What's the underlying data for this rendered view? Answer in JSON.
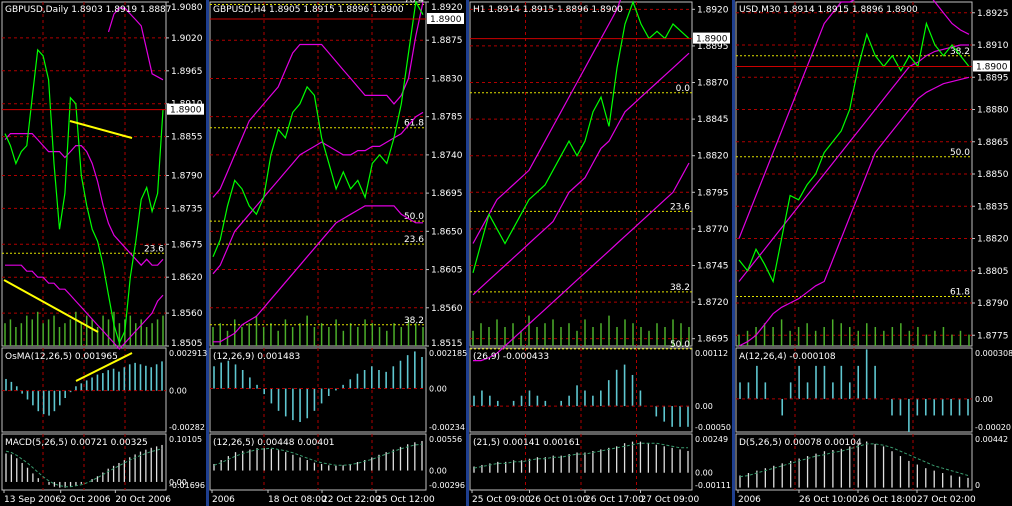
{
  "colors": {
    "background": "#000000",
    "grid": "#b00000",
    "frame": "#c0c0c0",
    "separator": "#1f3f8f",
    "price_line": "#00ff00",
    "envelope": "#e000e0",
    "volume": "#4caf2a",
    "histogram": "#5fc7d0",
    "macd_hist": "#e0e0e0",
    "macd_signal": "#3a9b6e",
    "trendline": "#ffff00",
    "fibo": "#e0e000",
    "current_price": "#cc0000",
    "text": "#ffffff"
  },
  "chart_data": [
    {
      "type": "line",
      "header": "GBPUSD,Daily  1.8903 1.8919 1.8887",
      "current_price_label": "1.8900",
      "price_axis": [
        "1.9080",
        "1.9020",
        "1.8965",
        "1.8910",
        "1.8855",
        "1.8790",
        "1.8735",
        "1.8675",
        "1.8620",
        "1.8560",
        "1.8505"
      ],
      "ylim": [
        1.8505,
        1.908
      ],
      "fibo_labels": [
        {
          "text": "23.6",
          "price": 1.866
        }
      ],
      "time_axis": [
        "13 Sep 2006",
        "2 Oct 2006",
        "20 Oct 2006"
      ],
      "price": [
        1.886,
        1.884,
        1.881,
        1.883,
        1.884,
        1.892,
        1.9,
        1.899,
        1.895,
        1.881,
        1.87,
        1.876,
        1.892,
        1.891,
        1.879,
        1.874,
        1.87,
        1.868,
        1.864,
        1.859,
        1.854,
        1.851,
        1.853,
        1.862,
        1.868,
        1.875,
        1.877,
        1.873,
        1.876,
        1.89
      ],
      "upper_band": [
        null,
        null,
        null,
        null,
        null,
        null,
        null,
        null,
        null,
        null,
        null,
        null,
        null,
        null,
        null,
        null,
        null,
        null,
        null,
        1.903,
        1.906,
        1.907,
        1.907,
        1.906,
        1.905,
        1.904,
        1.9,
        1.896,
        1.8955,
        1.895
      ],
      "middle_band": [
        1.885,
        1.886,
        1.886,
        1.886,
        1.886,
        1.886,
        1.885,
        1.884,
        1.883,
        1.883,
        1.883,
        1.882,
        1.883,
        1.884,
        1.884,
        1.883,
        1.881,
        1.878,
        1.874,
        1.871,
        1.869,
        1.868,
        1.867,
        1.866,
        1.865,
        1.864,
        1.865,
        1.864,
        1.864,
        1.865
      ],
      "lower_band": [
        1.864,
        1.864,
        1.864,
        1.864,
        1.863,
        1.863,
        1.862,
        1.862,
        1.861,
        1.861,
        1.86,
        1.86,
        1.859,
        1.858,
        1.857,
        1.856,
        1.855,
        1.854,
        1.853,
        1.852,
        1.851,
        1.85,
        1.851,
        1.852,
        1.853,
        1.854,
        1.855,
        1.856,
        1.858,
        1.859
      ],
      "volume": [
        0.6,
        0.7,
        0.5,
        0.6,
        0.8,
        0.7,
        0.9,
        0.6,
        0.7,
        0.8,
        0.5,
        0.6,
        0.7,
        0.9,
        0.6,
        0.8,
        0.7,
        0.5,
        0.8,
        0.7,
        0.9,
        0.6,
        0.7,
        0.8,
        0.6,
        0.7,
        0.5,
        0.6,
        0.7,
        0.8
      ],
      "osma_label": "OsMA(12,26,5)  0.001965",
      "osma_axis": [
        "0.002913",
        "0.00",
        "-0.00282"
      ],
      "osma_range": [
        -0.00282,
        0.002913
      ],
      "osma": [
        0.0008,
        0.0006,
        0.0003,
        -0.0002,
        -0.0006,
        -0.001,
        -0.0014,
        -0.0016,
        -0.0017,
        -0.0014,
        -0.001,
        -0.0005,
        -0.0001,
        0.0003,
        0.0005,
        0.0007,
        0.0009,
        0.0011,
        0.0012,
        0.0014,
        0.0015,
        0.0013,
        0.0016,
        0.0018,
        0.0019,
        0.0018,
        0.0017,
        0.0016,
        0.0018,
        0.002
      ],
      "macd_label": "MACD(5,26,5)  0.00721 0.00325",
      "macd_axis": [
        "0.10105",
        "0.00",
        "-0.01696"
      ],
      "macd_range": [
        -0.01696,
        0.10105
      ],
      "macd": [
        0.06,
        0.058,
        0.05,
        0.04,
        0.03,
        0.018,
        0.008,
        0.0,
        -0.006,
        -0.01,
        -0.012,
        -0.012,
        -0.01,
        -0.008,
        -0.004,
        0.0,
        0.006,
        0.012,
        0.02,
        0.028,
        0.034,
        0.04,
        0.046,
        0.052,
        0.058,
        0.064,
        0.068,
        0.072,
        0.075,
        0.078
      ],
      "macd_signal": [
        0.065,
        0.062,
        0.056,
        0.048,
        0.04,
        0.03,
        0.02,
        0.01,
        0.002,
        -0.004,
        -0.008,
        -0.01,
        -0.01,
        -0.008,
        -0.006,
        -0.002,
        0.003,
        0.009,
        0.015,
        0.022,
        0.028,
        0.034,
        0.04,
        0.046,
        0.051,
        0.056,
        0.06,
        0.064,
        0.067,
        0.07
      ]
    },
    {
      "type": "line",
      "header": "GBPUSD,H4  1.8905 1.8915 1.8896 1.8900",
      "current_price_label": "1.8900",
      "price_axis": [
        "1.8920",
        "1.8875",
        "1.8830",
        "1.8785",
        "1.8740",
        "1.8695",
        "1.8650",
        "1.8605",
        "1.8560",
        "1.8515"
      ],
      "ylim": [
        1.8515,
        1.892
      ],
      "fibo_labels": [
        {
          "text": "76.4",
          "price": 1.8917
        },
        {
          "text": "61.8",
          "price": 1.8772
        },
        {
          "text": "50.0",
          "price": 1.8662
        },
        {
          "text": "23.6",
          "price": 1.8635
        },
        {
          "text": "38.2",
          "price": 1.854
        }
      ],
      "time_axis": [
        "2006",
        "18 Oct 08:00",
        "22 Oct 22:00",
        "25 Oct 12:00"
      ],
      "price": [
        1.862,
        1.864,
        1.868,
        1.871,
        1.87,
        1.868,
        1.867,
        1.869,
        1.874,
        1.877,
        1.876,
        1.879,
        1.88,
        1.882,
        1.881,
        1.876,
        1.873,
        1.87,
        1.872,
        1.87,
        1.871,
        1.869,
        1.873,
        1.874,
        1.873,
        1.876,
        1.88,
        1.886,
        1.892,
        1.8905
      ],
      "upper_band": [
        1.869,
        1.87,
        1.872,
        1.874,
        1.876,
        1.878,
        1.879,
        1.88,
        1.881,
        1.882,
        1.884,
        1.886,
        1.887,
        1.887,
        1.887,
        1.887,
        1.886,
        1.885,
        1.884,
        1.883,
        1.882,
        1.881,
        1.881,
        1.881,
        1.881,
        1.88,
        1.881,
        1.883,
        1.888,
        1.892
      ],
      "middle_band": [
        1.86,
        1.861,
        1.863,
        1.865,
        1.866,
        1.867,
        1.868,
        1.869,
        1.87,
        1.871,
        1.872,
        1.873,
        1.874,
        1.8745,
        1.875,
        1.8755,
        1.875,
        1.8745,
        1.874,
        1.874,
        1.8745,
        1.8745,
        1.875,
        1.875,
        1.8755,
        1.876,
        1.8765,
        1.8775,
        1.8785,
        1.879
      ],
      "lower_band": [
        1.852,
        1.852,
        1.8525,
        1.853,
        1.854,
        1.8545,
        1.855,
        1.856,
        1.857,
        1.858,
        1.859,
        1.86,
        1.861,
        1.862,
        1.863,
        1.864,
        1.865,
        1.866,
        1.8665,
        1.867,
        1.8675,
        1.868,
        1.868,
        1.868,
        1.868,
        1.868,
        1.867,
        1.8665,
        1.866,
        1.866
      ],
      "volume": [
        0.5,
        0.6,
        0.4,
        0.7,
        0.5,
        0.6,
        0.8,
        0.5,
        0.6,
        0.4,
        0.7,
        0.5,
        0.6,
        0.8,
        0.5,
        0.6,
        0.5,
        0.7,
        0.4,
        0.6,
        0.5,
        0.7,
        0.6,
        0.5,
        0.4,
        0.6,
        0.5,
        0.7,
        0.6,
        0.5
      ],
      "osma_label": "(12,26,9)  0.001483",
      "osma_axis": [
        "0.002185",
        "0.00",
        "-0.00234"
      ],
      "osma_range": [
        -0.00234,
        0.002185
      ],
      "osma": [
        0.0012,
        0.0014,
        0.0015,
        0.0013,
        0.001,
        0.0006,
        0.0002,
        -0.0003,
        -0.0008,
        -0.0012,
        -0.0015,
        -0.0017,
        -0.0018,
        -0.0016,
        -0.0012,
        -0.0008,
        -0.0004,
        -0.0001,
        0.0002,
        0.0005,
        0.0008,
        0.001,
        0.0012,
        0.001,
        0.0009,
        0.0012,
        0.0015,
        0.0018,
        0.002,
        0.0017
      ],
      "macd_label": "(12,26,5)  0.00448 0.00401",
      "macd_axis": [
        "0.00556",
        "0.00",
        "-0.00296"
      ],
      "macd_range": [
        -0.00296,
        0.00556
      ],
      "macd": [
        0.001,
        0.0016,
        0.0022,
        0.0028,
        0.003,
        0.0032,
        0.0034,
        0.0034,
        0.0033,
        0.0031,
        0.0028,
        0.0024,
        0.002,
        0.0016,
        0.0012,
        0.001,
        0.0008,
        0.0007,
        0.0008,
        0.001,
        0.0013,
        0.0016,
        0.002,
        0.0024,
        0.0028,
        0.0032,
        0.0036,
        0.004,
        0.0043,
        0.0045
      ],
      "macd_signal": [
        0.0008,
        0.0012,
        0.0017,
        0.0022,
        0.0026,
        0.0029,
        0.0032,
        0.0033,
        0.0034,
        0.0032,
        0.003,
        0.0027,
        0.0023,
        0.0019,
        0.0015,
        0.0012,
        0.001,
        0.0008,
        0.0008,
        0.0009,
        0.0011,
        0.0014,
        0.0017,
        0.0021,
        0.0025,
        0.0029,
        0.0033,
        0.0036,
        0.0039,
        0.004
      ]
    },
    {
      "type": "line",
      "header": "H1  1.8914 1.8915 1.8896 1.8900",
      "current_price_label": "1.8900",
      "price_axis": [
        "1.8920",
        "1.8895",
        "1.8870",
        "1.8845",
        "1.8820",
        "1.8795",
        "1.8770",
        "1.8745",
        "1.8720",
        "1.8695"
      ],
      "ylim": [
        1.869,
        1.8925
      ],
      "fibo_labels": [
        {
          "text": "0.0",
          "price": 1.8863
        },
        {
          "text": "23.6",
          "price": 1.8782
        },
        {
          "text": "38.2",
          "price": 1.8727
        },
        {
          "text": "50.0",
          "price": 1.8688
        }
      ],
      "time_axis": [
        "25 Oct 09:00",
        "26 Oct 01:00",
        "26 Oct 17:00",
        "27 Oct 09:00"
      ],
      "price": [
        1.874,
        1.876,
        1.878,
        1.877,
        1.876,
        1.877,
        1.878,
        1.879,
        1.8795,
        1.88,
        1.881,
        1.882,
        1.883,
        1.882,
        1.883,
        1.885,
        1.886,
        1.884,
        1.888,
        1.891,
        1.8925,
        1.891,
        1.89,
        1.8905,
        1.89,
        1.891,
        1.8905,
        1.89
      ],
      "upper_band": [
        1.876,
        1.877,
        1.878,
        1.879,
        1.8795,
        1.88,
        1.8805,
        1.881,
        1.882,
        1.883,
        1.884,
        1.885,
        1.886,
        1.887,
        1.888,
        1.889,
        1.89,
        1.891,
        1.892,
        1.8935,
        1.895,
        1.896,
        1.897,
        1.898,
        1.8985,
        1.899,
        1.8995,
        1.9
      ],
      "middle_band": [
        1.8725,
        1.873,
        1.8735,
        1.874,
        1.8745,
        1.875,
        1.8755,
        1.876,
        1.8765,
        1.877,
        1.8775,
        1.8785,
        1.8795,
        1.88,
        1.8805,
        1.8815,
        1.8825,
        1.883,
        1.884,
        1.885,
        1.8855,
        1.886,
        1.8865,
        1.887,
        1.8875,
        1.888,
        1.8885,
        1.889
      ],
      "lower_band": [
        1.868,
        1.868,
        1.8682,
        1.8685,
        1.869,
        1.8695,
        1.87,
        1.8705,
        1.871,
        1.8715,
        1.872,
        1.8725,
        1.873,
        1.8735,
        1.874,
        1.8745,
        1.875,
        1.8755,
        1.876,
        1.8765,
        1.877,
        1.8775,
        1.878,
        1.8785,
        1.879,
        1.8795,
        1.8805,
        1.8815
      ],
      "volume": [
        0.4,
        0.6,
        0.5,
        0.7,
        0.5,
        0.6,
        0.4,
        0.8,
        0.5,
        0.6,
        0.7,
        0.5,
        0.6,
        0.4,
        0.7,
        0.5,
        0.6,
        0.8,
        0.5,
        0.7,
        0.6,
        0.5,
        0.4,
        0.6,
        0.5,
        0.7,
        0.6,
        0.5
      ],
      "osma_label": "(26,9)  -0.000433",
      "osma_axis": [
        "0.00112",
        "0.00",
        "-0.00050"
      ],
      "osma_range": [
        -0.0005,
        0.00112
      ],
      "osma": [
        0.0002,
        0.0003,
        0.0002,
        0.0001,
        0.0,
        0.0001,
        0.0002,
        0.0003,
        0.0002,
        0.0001,
        0.0,
        0.0001,
        0.0002,
        0.0004,
        0.0003,
        0.0002,
        0.0003,
        0.0005,
        0.0007,
        0.0008,
        0.0006,
        0.0003,
        0.0,
        -0.0002,
        -0.0003,
        -0.0004,
        -0.0004,
        -0.0004
      ],
      "macd_label": "(21,5)  0.00141 0.00161",
      "macd_axis": [
        "0.00249",
        "0.00",
        "-0.00111"
      ],
      "macd_range": [
        -0.00111,
        0.00249
      ],
      "macd": [
        0.0004,
        0.0005,
        0.0006,
        0.0007,
        0.0007,
        0.0008,
        0.0008,
        0.0009,
        0.001,
        0.001,
        0.0011,
        0.0011,
        0.0012,
        0.0013,
        0.0013,
        0.0014,
        0.0015,
        0.0016,
        0.0017,
        0.0019,
        0.002,
        0.002,
        0.0019,
        0.0018,
        0.0017,
        0.0016,
        0.0015,
        0.0014
      ],
      "macd_signal": [
        0.0003,
        0.0004,
        0.0005,
        0.0006,
        0.0006,
        0.0007,
        0.0007,
        0.0008,
        0.0009,
        0.0009,
        0.001,
        0.001,
        0.0011,
        0.0012,
        0.0012,
        0.0013,
        0.0014,
        0.0015,
        0.0016,
        0.0017,
        0.0018,
        0.0019,
        0.0019,
        0.0019,
        0.0018,
        0.0017,
        0.0016,
        0.0016
      ]
    },
    {
      "type": "line",
      "header": "USD,M30  1.8914 1.8915 1.8896 1.8900",
      "current_price_label": "1.8900",
      "price_axis": [
        "1.8925",
        "1.8910",
        "1.8895",
        "1.8880",
        "1.8865",
        "1.8850",
        "1.8835",
        "1.8820",
        "1.8805",
        "1.8790",
        "1.8775"
      ],
      "ylim": [
        1.877,
        1.893
      ],
      "fibo_labels": [
        {
          "text": "38.2",
          "price": 1.8905
        },
        {
          "text": "50.0",
          "price": 1.8858
        },
        {
          "text": "61.8",
          "price": 1.8793
        }
      ],
      "time_axis": [
        "2006",
        "26 Oct 10:00",
        "26 Oct 18:00",
        "27 Oct 02:00"
      ],
      "price": [
        1.881,
        1.8805,
        1.8815,
        1.8808,
        1.88,
        1.882,
        1.884,
        1.8838,
        1.8845,
        1.885,
        1.886,
        1.8865,
        1.887,
        1.888,
        1.89,
        1.8915,
        1.8905,
        1.89,
        1.8905,
        1.8898,
        1.8905,
        1.89,
        1.892,
        1.891,
        1.8905,
        1.891,
        1.8905,
        1.89
      ],
      "upper_band": [
        1.882,
        1.883,
        1.884,
        1.885,
        1.886,
        1.887,
        1.888,
        1.889,
        1.89,
        1.891,
        1.892,
        1.8925,
        1.893,
        1.893,
        1.8932,
        1.8935,
        1.8938,
        1.894,
        1.8942,
        1.8943,
        1.8943,
        1.894,
        1.8935,
        1.893,
        1.8925,
        1.892,
        1.8917,
        1.8915
      ],
      "middle_band": [
        1.88,
        1.8805,
        1.881,
        1.8815,
        1.882,
        1.8825,
        1.883,
        1.8835,
        1.884,
        1.8845,
        1.885,
        1.8855,
        1.886,
        1.8865,
        1.887,
        1.8875,
        1.888,
        1.8885,
        1.889,
        1.8895,
        1.89,
        1.8902,
        1.8905,
        1.8907,
        1.8908,
        1.8909,
        1.891,
        1.891
      ],
      "lower_band": [
        1.877,
        1.8772,
        1.8775,
        1.878,
        1.8785,
        1.8788,
        1.879,
        1.8792,
        1.8795,
        1.8798,
        1.88,
        1.881,
        1.882,
        1.883,
        1.884,
        1.885,
        1.886,
        1.8865,
        1.887,
        1.8875,
        1.888,
        1.8885,
        1.8888,
        1.889,
        1.8892,
        1.8893,
        1.8894,
        1.8895
      ],
      "volume": [
        0.3,
        0.4,
        0.5,
        0.6,
        0.5,
        0.7,
        0.4,
        0.5,
        0.6,
        0.4,
        0.5,
        0.7,
        0.6,
        0.5,
        0.4,
        0.6,
        0.5,
        0.4,
        0.5,
        0.6,
        0.4,
        0.5,
        0.3,
        0.4,
        0.5,
        0.3,
        0.4,
        0.3
      ],
      "osma_label": "A(12,26,4)  -0.000108",
      "osma_axis": [
        "0.000308",
        "0.00",
        "-0.00020"
      ],
      "osma_range": [
        -0.0002,
        0.000308
      ],
      "osma": [
        0.0001,
        0.0001,
        0.0002,
        0.0001,
        0.0,
        -0.0001,
        0.0001,
        0.0002,
        0.0001,
        0.0002,
        0.0002,
        0.0001,
        0.0002,
        0.0001,
        0.0002,
        0.0003,
        0.0002,
        0.0,
        -0.0001,
        -0.0001,
        -0.0002,
        -0.0001,
        -0.0001,
        -0.0001,
        -0.0001,
        -0.0001,
        -0.0001,
        -0.0001
      ],
      "macd_label": "D(5,26,5)  0.00078 0.00104",
      "macd_axis": [
        "0.00442",
        "0"
      ],
      "macd_range": [
        -0.0002,
        0.00442
      ],
      "macd": [
        0.001,
        0.0012,
        0.0014,
        0.0016,
        0.0018,
        0.002,
        0.0022,
        0.0024,
        0.0026,
        0.0028,
        0.003,
        0.0031,
        0.0032,
        0.0034,
        0.0036,
        0.0038,
        0.0036,
        0.0034,
        0.003,
        0.0026,
        0.0022,
        0.0019,
        0.0016,
        0.0014,
        0.0012,
        0.001,
        0.0009,
        0.0008
      ],
      "macd_signal": [
        0.0009,
        0.001,
        0.0012,
        0.0014,
        0.0016,
        0.0018,
        0.002,
        0.0022,
        0.0024,
        0.0026,
        0.0027,
        0.0029,
        0.003,
        0.0032,
        0.0034,
        0.0036,
        0.0036,
        0.0035,
        0.0033,
        0.003,
        0.0027,
        0.0024,
        0.0021,
        0.0018,
        0.0016,
        0.0014,
        0.0012,
        0.001
      ]
    }
  ]
}
